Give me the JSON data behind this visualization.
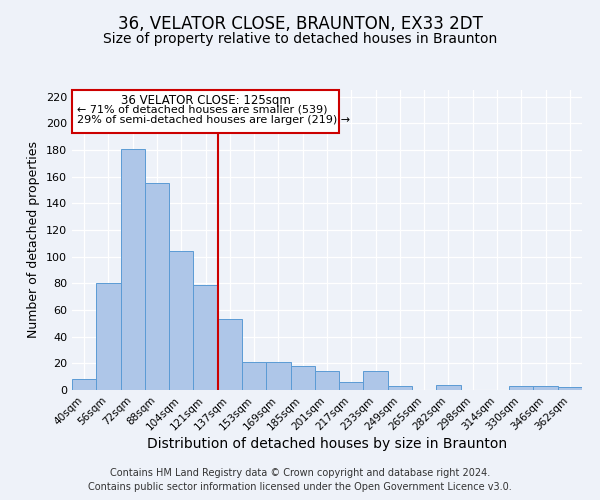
{
  "title": "36, VELATOR CLOSE, BRAUNTON, EX33 2DT",
  "subtitle": "Size of property relative to detached houses in Braunton",
  "xlabel": "Distribution of detached houses by size in Braunton",
  "ylabel": "Number of detached properties",
  "bar_labels": [
    "40sqm",
    "56sqm",
    "72sqm",
    "88sqm",
    "104sqm",
    "121sqm",
    "137sqm",
    "153sqm",
    "169sqm",
    "185sqm",
    "201sqm",
    "217sqm",
    "233sqm",
    "249sqm",
    "265sqm",
    "282sqm",
    "298sqm",
    "314sqm",
    "330sqm",
    "346sqm",
    "362sqm"
  ],
  "bar_values": [
    8,
    80,
    181,
    155,
    104,
    79,
    53,
    21,
    21,
    18,
    14,
    6,
    14,
    3,
    0,
    4,
    0,
    0,
    3,
    3,
    2
  ],
  "bar_color": "#aec6e8",
  "bar_edge_color": "#5b9bd5",
  "ylim": [
    0,
    225
  ],
  "yticks": [
    0,
    20,
    40,
    60,
    80,
    100,
    120,
    140,
    160,
    180,
    200,
    220
  ],
  "vline_index": 5.5,
  "vline_color": "#cc0000",
  "annotation_title": "36 VELATOR CLOSE: 125sqm",
  "annotation_line1": "← 71% of detached houses are smaller (539)",
  "annotation_line2": "29% of semi-detached houses are larger (219) →",
  "annotation_box_edge": "#cc0000",
  "footer_line1": "Contains HM Land Registry data © Crown copyright and database right 2024.",
  "footer_line2": "Contains public sector information licensed under the Open Government Licence v3.0.",
  "title_fontsize": 12,
  "subtitle_fontsize": 10,
  "xlabel_fontsize": 10,
  "ylabel_fontsize": 9,
  "footer_fontsize": 7,
  "background_color": "#eef2f9"
}
